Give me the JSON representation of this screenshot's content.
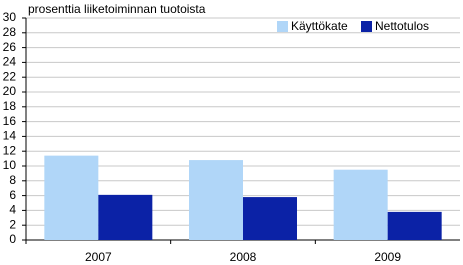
{
  "chart_data": {
    "type": "bar",
    "title": "prosenttia liiketoiminnan tuotoista",
    "categories": [
      "2007",
      "2008",
      "2009"
    ],
    "series": [
      {
        "name": "Käyttökate",
        "color": "#b0d6f8",
        "values": [
          11.4,
          10.8,
          9.5
        ]
      },
      {
        "name": "Nettotulos",
        "color": "#0b22a6",
        "values": [
          6.1,
          5.8,
          3.8
        ]
      }
    ],
    "ylim": [
      0,
      30
    ],
    "yticks": [
      0,
      2,
      4,
      6,
      8,
      10,
      12,
      14,
      16,
      18,
      20,
      22,
      24,
      26,
      28,
      30
    ],
    "grid": true,
    "legend": "top-right"
  }
}
